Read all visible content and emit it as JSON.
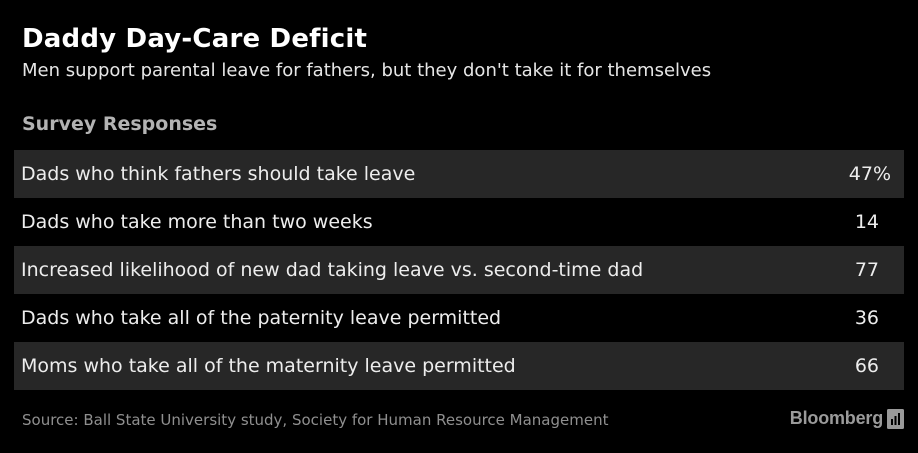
{
  "title": "Daddy Day-Care Deficit",
  "subtitle": "Men support parental leave for fathers, but they don't take it for themselves",
  "section_label": "Survey Responses",
  "source": "Source: Ball State University study, Society for Human Resource Management",
  "brand": "Bloomberg",
  "colors": {
    "background": "#000000",
    "row_shade": "#272727",
    "text": "#ededed",
    "muted": "#8f8f8f"
  },
  "icons": [
    "bloomberg-logo-mark-icon"
  ],
  "chart_data": {
    "type": "table",
    "title": "Daddy Day-Care Deficit",
    "subtitle": "Men support parental leave for fathers, but they don't take it for themselves",
    "header": "Survey Responses",
    "rows": [
      {
        "label": "Dads who think fathers should take leave",
        "value": "47%"
      },
      {
        "label": "Dads who take more than two weeks",
        "value": "14"
      },
      {
        "label": "Increased likelihood of new dad taking leave vs. second-time dad",
        "value": "77"
      },
      {
        "label": "Dads who take all of the paternity leave permitted",
        "value": "36"
      },
      {
        "label": "Moms who take all of the maternity leave permitted",
        "value": "66"
      }
    ],
    "source": "Source: Ball State University study, Society for Human Resource Management"
  }
}
